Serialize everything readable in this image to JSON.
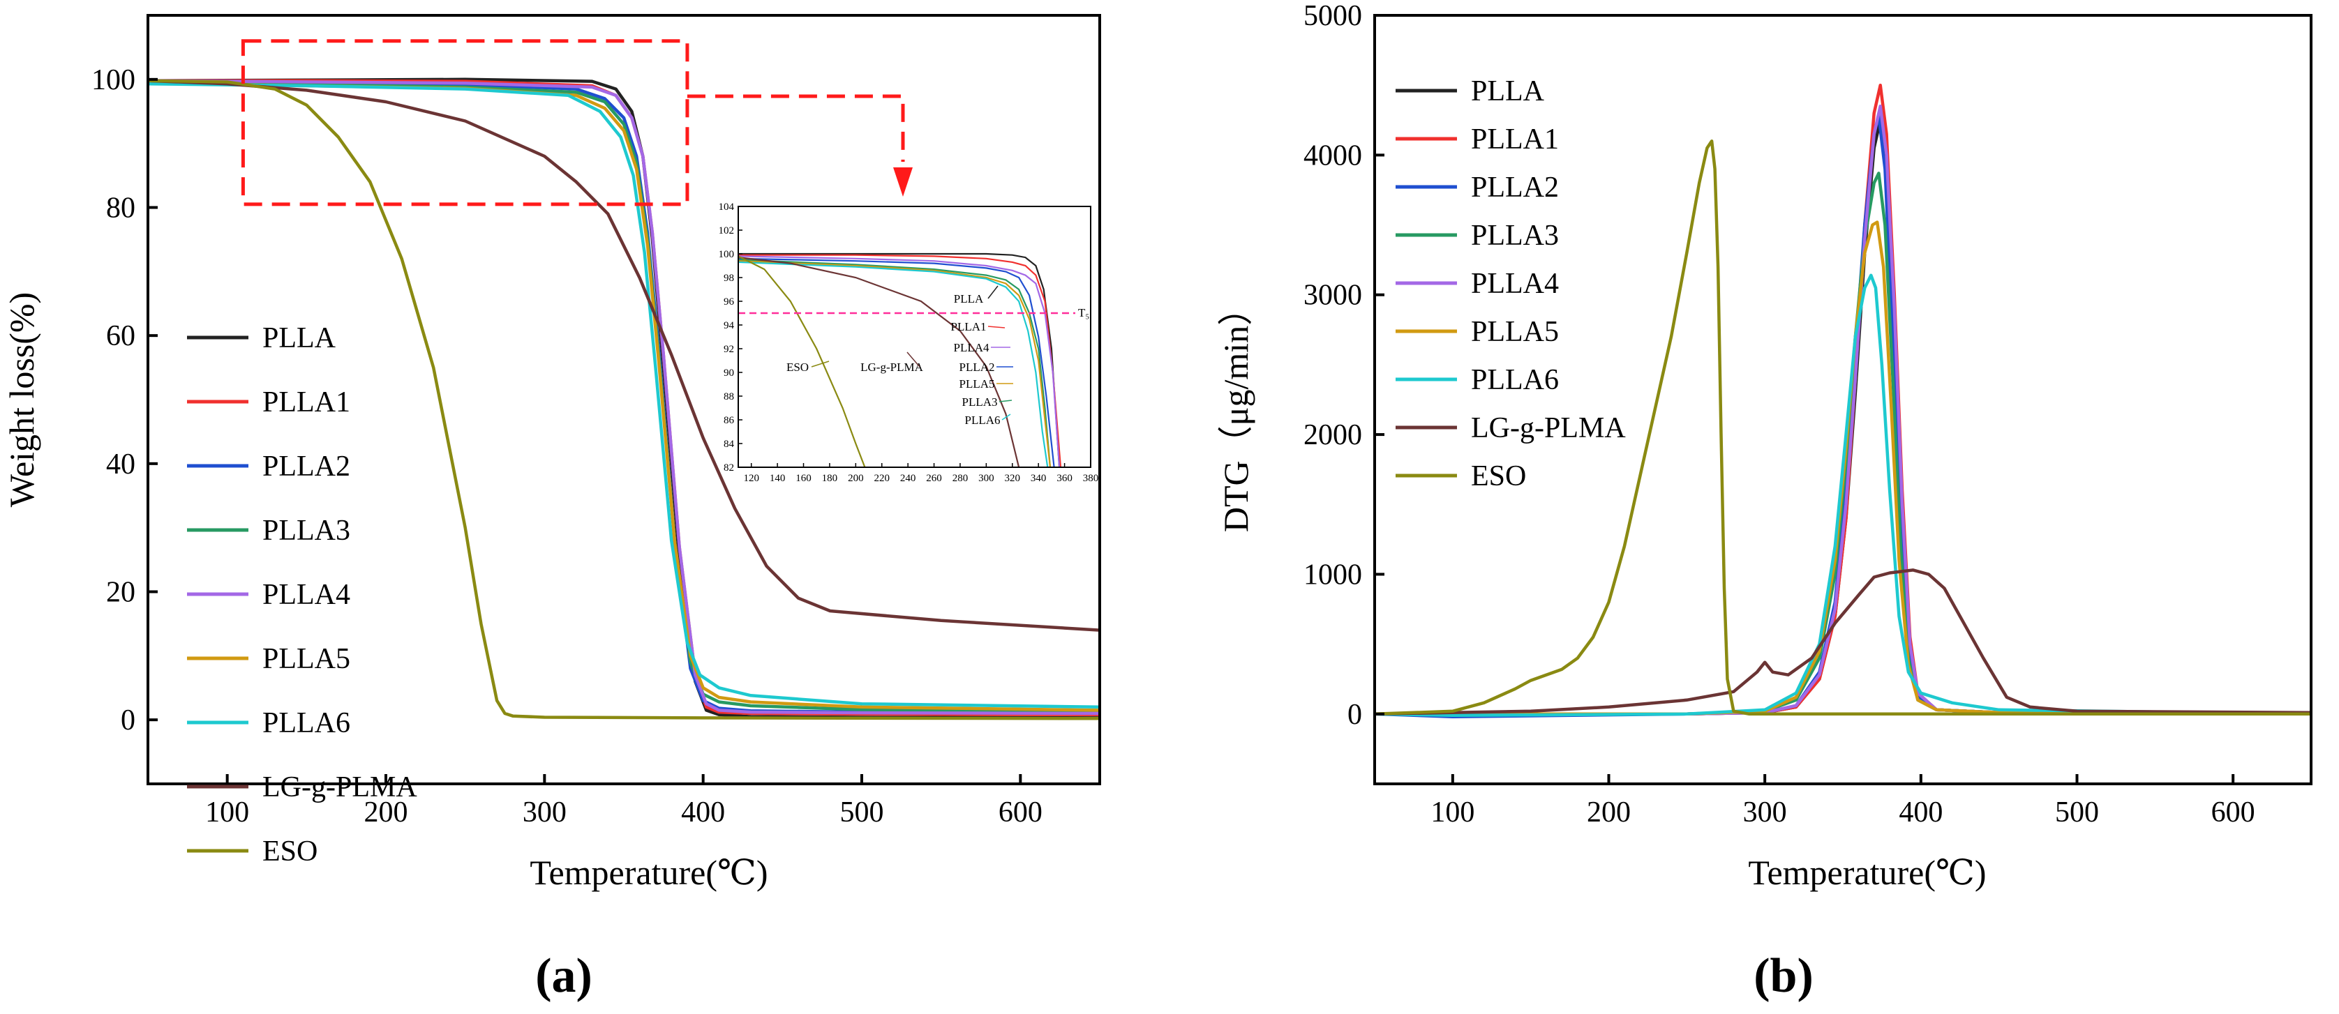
{
  "figure": {
    "panel_a_label": "(a)",
    "panel_b_label": "(b)"
  },
  "colors": {
    "PLLA": "#222222",
    "PLLA1": "#f0302e",
    "PLLA2": "#1f4fd0",
    "PLLA3": "#279a62",
    "PLLA4": "#a368e6",
    "PLLA5": "#d19a12",
    "PLLA6": "#1ec9cf",
    "LG-g-PLMA": "#6b3434",
    "ESO": "#8a8a12",
    "highlight": "#ff1a1a",
    "ts_line": "#ff2e9a"
  },
  "chart_data": [
    {
      "type": "line",
      "panel": "a",
      "title": "",
      "xlabel": "Temperature(℃)",
      "ylabel": "Weight loss(%)",
      "xlim": [
        50,
        650
      ],
      "ylim": [
        -10,
        110
      ],
      "xticks": [
        100,
        200,
        300,
        400,
        500,
        600
      ],
      "yticks": [
        0,
        20,
        40,
        60,
        80,
        100
      ],
      "legend_position": "left",
      "series": [
        {
          "name": "PLLA",
          "x": [
            50,
            150,
            250,
            330,
            345,
            355,
            362,
            368,
            375,
            385,
            395,
            402,
            410,
            430,
            500,
            650
          ],
          "y": [
            99.8,
            99.9,
            100,
            99.7,
            98.5,
            95,
            88,
            75,
            55,
            25,
            6,
            1.5,
            0.8,
            0.5,
            0.4,
            0.3
          ]
        },
        {
          "name": "PLLA1",
          "x": [
            50,
            150,
            250,
            330,
            345,
            355,
            362,
            368,
            375,
            385,
            395,
            402,
            410,
            430,
            500,
            650
          ],
          "y": [
            99.8,
            99.8,
            99.7,
            99,
            97.5,
            94,
            88,
            76,
            57,
            27,
            7,
            2,
            1.2,
            1,
            0.9,
            0.8
          ]
        },
        {
          "name": "PLLA2",
          "x": [
            50,
            150,
            250,
            320,
            338,
            350,
            358,
            365,
            372,
            382,
            392,
            400,
            410,
            430,
            500,
            650
          ],
          "y": [
            99.6,
            99.4,
            99.2,
            98.5,
            97,
            94,
            88,
            76,
            58,
            28,
            8,
            3,
            1.8,
            1.4,
            1.2,
            1.1
          ]
        },
        {
          "name": "PLLA3",
          "x": [
            50,
            150,
            250,
            320,
            338,
            350,
            358,
            365,
            372,
            382,
            392,
            400,
            410,
            430,
            500,
            650
          ],
          "y": [
            99.5,
            99.2,
            98.8,
            98,
            96.5,
            93,
            87,
            75,
            57,
            28,
            9,
            4,
            2.8,
            2.2,
            1.6,
            1.3
          ]
        },
        {
          "name": "PLLA4",
          "x": [
            50,
            150,
            250,
            330,
            345,
            355,
            362,
            368,
            375,
            385,
            395,
            402,
            410,
            430,
            500,
            650
          ],
          "y": [
            99.8,
            99.6,
            99.4,
            98.8,
            97.5,
            94,
            88,
            76,
            57,
            27,
            7,
            2.5,
            1.5,
            1.2,
            1.1,
            1
          ]
        },
        {
          "name": "PLLA5",
          "x": [
            50,
            150,
            250,
            320,
            338,
            350,
            358,
            365,
            372,
            382,
            392,
            400,
            410,
            430,
            500,
            650
          ],
          "y": [
            99.4,
            99,
            98.6,
            97.5,
            95.5,
            92,
            86,
            74,
            56,
            28,
            10,
            5,
            3.5,
            2.8,
            2,
            1.5
          ]
        },
        {
          "name": "PLLA6",
          "x": [
            50,
            150,
            250,
            315,
            335,
            348,
            356,
            363,
            370,
            380,
            390,
            398,
            410,
            430,
            500,
            650
          ],
          "y": [
            99.3,
            99,
            98.5,
            97.5,
            95,
            91,
            85,
            73,
            55,
            28,
            12,
            7,
            5,
            3.8,
            2.5,
            2
          ]
        },
        {
          "name": "LG-g-PLMA",
          "x": [
            50,
            100,
            150,
            200,
            250,
            300,
            320,
            340,
            360,
            380,
            400,
            420,
            440,
            460,
            480,
            550,
            650
          ],
          "y": [
            99.8,
            99.3,
            98.3,
            96.5,
            93.5,
            88,
            84,
            79,
            69,
            57,
            44,
            33,
            24,
            19,
            17,
            15.5,
            14
          ]
        },
        {
          "name": "ESO",
          "x": [
            50,
            100,
            130,
            150,
            170,
            190,
            210,
            230,
            250,
            260,
            270,
            275,
            280,
            300,
            400,
            650
          ],
          "y": [
            99.8,
            99.6,
            98.5,
            96,
            91,
            84,
            72,
            55,
            30,
            15,
            3,
            1,
            0.6,
            0.4,
            0.3,
            0.2
          ]
        }
      ],
      "annotations": {
        "zoom_box": {
          "x_range": [
            110,
            390
          ],
          "y_range": [
            80.5,
            106
          ]
        }
      },
      "inset": {
        "xlim": [
          110,
          380
        ],
        "ylim": [
          82,
          104
        ],
        "xticks": [
          120,
          140,
          160,
          180,
          200,
          220,
          240,
          260,
          280,
          300,
          320,
          340,
          360,
          380
        ],
        "yticks": [
          82,
          84,
          86,
          88,
          90,
          92,
          94,
          96,
          98,
          100,
          102,
          104
        ],
        "ts_level": 95,
        "ts_label": "T₅",
        "labels": [
          "PLLA",
          "PLLA1",
          "PLLA4",
          "PLLA2",
          "PLLA5",
          "PLLA3",
          "PLLA6",
          "ESO",
          "LG-g-PLMA"
        ],
        "series": [
          {
            "name": "PLLA",
            "x": [
              110,
              200,
              260,
              300,
              320,
              330,
              338,
              344,
              350,
              356
            ],
            "y": [
              100,
              100,
              100,
              100,
              99.9,
              99.7,
              99,
              97,
              92,
              82
            ]
          },
          {
            "name": "PLLA1",
            "x": [
              110,
              200,
              260,
              300,
              320,
              330,
              338,
              345,
              351,
              357
            ],
            "y": [
              99.9,
              99.9,
              99.8,
              99.6,
              99.3,
              99,
              98.2,
              96,
              90,
              82
            ]
          },
          {
            "name": "PLLA2",
            "x": [
              110,
              200,
              260,
              300,
              315,
              325,
              333,
              340,
              346,
              352
            ],
            "y": [
              99.6,
              99.4,
              99.2,
              98.8,
              98.5,
              98,
              96.5,
              93,
              88,
              82
            ]
          },
          {
            "name": "PLLA3",
            "x": [
              110,
              200,
              260,
              300,
              315,
              325,
              333,
              340,
              345,
              349
            ],
            "y": [
              99.5,
              99.1,
              98.7,
              98.2,
              97.8,
              97,
              95,
              92,
              87,
              82
            ]
          },
          {
            "name": "PLLA4",
            "x": [
              110,
              200,
              260,
              300,
              320,
              330,
              338,
              345,
              351,
              356
            ],
            "y": [
              99.8,
              99.6,
              99.4,
              99,
              98.6,
              98.2,
              97.5,
              95,
              90,
              82
            ]
          },
          {
            "name": "PLLA5",
            "x": [
              110,
              200,
              260,
              300,
              315,
              325,
              333,
              340,
              345,
              349
            ],
            "y": [
              99.4,
              99,
              98.6,
              98,
              97.5,
              96.5,
              94.5,
              91,
              86,
              82
            ]
          },
          {
            "name": "PLLA6",
            "x": [
              110,
              200,
              260,
              300,
              315,
              325,
              332,
              338,
              343,
              347
            ],
            "y": [
              99.3,
              98.9,
              98.5,
              97.9,
              97.2,
              96,
              93.5,
              90,
              85,
              82
            ]
          },
          {
            "name": "LG-g-PLMA",
            "x": [
              110,
              150,
              200,
              250,
              280,
              300,
              315,
              325
            ],
            "y": [
              99.7,
              99.2,
              98,
              96,
              93.5,
              90.5,
              86.5,
              82
            ]
          },
          {
            "name": "ESO",
            "x": [
              110,
              130,
              150,
              170,
              190,
              200,
              207
            ],
            "y": [
              99.8,
              98.7,
              96,
              92,
              87,
              84,
              82
            ]
          }
        ]
      }
    },
    {
      "type": "line",
      "panel": "b",
      "title": "",
      "xlabel": "Temperature(℃)",
      "ylabel": "DTG（μg/min）",
      "xlim": [
        50,
        650
      ],
      "ylim": [
        -500,
        5000
      ],
      "xticks": [
        100,
        200,
        300,
        400,
        500,
        600
      ],
      "yticks": [
        0,
        1000,
        2000,
        3000,
        4000,
        5000
      ],
      "legend_position": "top-left",
      "series": [
        {
          "name": "PLLA",
          "x": [
            50,
            250,
            300,
            320,
            335,
            345,
            352,
            358,
            364,
            370,
            374,
            378,
            383,
            388,
            393,
            398,
            410,
            450,
            650
          ],
          "y": [
            0,
            0,
            10,
            50,
            250,
            700,
            1400,
            2300,
            3300,
            4050,
            4250,
            3900,
            2800,
            1500,
            500,
            150,
            30,
            10,
            0
          ]
        },
        {
          "name": "PLLA1",
          "x": [
            50,
            250,
            300,
            320,
            335,
            345,
            352,
            358,
            364,
            370,
            374,
            378,
            383,
            388,
            393,
            398,
            410,
            450,
            650
          ],
          "y": [
            0,
            0,
            10,
            50,
            250,
            700,
            1400,
            2400,
            3500,
            4300,
            4500,
            4150,
            3000,
            1600,
            550,
            150,
            30,
            10,
            0
          ]
        },
        {
          "name": "PLLA2",
          "x": [
            50,
            100,
            250,
            300,
            320,
            335,
            345,
            352,
            358,
            364,
            370,
            373,
            377,
            382,
            387,
            392,
            398,
            410,
            450,
            650
          ],
          "y": [
            0,
            -20,
            0,
            10,
            60,
            300,
            800,
            1600,
            2600,
            3500,
            4150,
            4280,
            3900,
            2700,
            1400,
            450,
            120,
            30,
            10,
            0
          ]
        },
        {
          "name": "PLLA3",
          "x": [
            50,
            250,
            300,
            320,
            335,
            345,
            352,
            358,
            364,
            370,
            373,
            377,
            382,
            387,
            392,
            398,
            410,
            450,
            650
          ],
          "y": [
            0,
            0,
            20,
            100,
            400,
            1000,
            1800,
            2700,
            3400,
            3800,
            3870,
            3500,
            2400,
            1200,
            400,
            100,
            30,
            10,
            0
          ]
        },
        {
          "name": "PLLA4",
          "x": [
            50,
            250,
            300,
            320,
            335,
            345,
            352,
            358,
            364,
            370,
            374,
            378,
            383,
            388,
            393,
            398,
            410,
            450,
            650
          ],
          "y": [
            0,
            0,
            10,
            60,
            280,
            750,
            1500,
            2400,
            3400,
            4150,
            4350,
            4000,
            2900,
            1500,
            500,
            150,
            30,
            10,
            0
          ]
        },
        {
          "name": "PLLA5",
          "x": [
            50,
            250,
            300,
            320,
            335,
            345,
            352,
            358,
            364,
            369,
            372,
            376,
            381,
            386,
            392,
            398,
            410,
            450,
            650
          ],
          "y": [
            0,
            0,
            20,
            120,
            450,
            1100,
            1900,
            2700,
            3300,
            3500,
            3520,
            3200,
            2200,
            1100,
            350,
            100,
            30,
            10,
            0
          ]
        },
        {
          "name": "PLLA6",
          "x": [
            50,
            100,
            250,
            300,
            320,
            335,
            345,
            352,
            358,
            364,
            368,
            371,
            375,
            380,
            386,
            392,
            400,
            420,
            450,
            650
          ],
          "y": [
            0,
            -10,
            0,
            30,
            150,
            500,
            1200,
            2000,
            2700,
            3050,
            3140,
            3050,
            2500,
            1600,
            700,
            300,
            150,
            80,
            30,
            0
          ]
        },
        {
          "name": "LG-g-PLMA",
          "x": [
            50,
            100,
            150,
            200,
            250,
            280,
            295,
            300,
            305,
            315,
            330,
            345,
            360,
            370,
            380,
            395,
            405,
            415,
            425,
            440,
            455,
            470,
            500,
            650
          ],
          "y": [
            0,
            10,
            20,
            50,
            100,
            160,
            300,
            370,
            300,
            280,
            400,
            650,
            850,
            980,
            1010,
            1030,
            1000,
            900,
            700,
            400,
            120,
            50,
            20,
            10
          ]
        },
        {
          "name": "ESO",
          "x": [
            50,
            100,
            120,
            140,
            150,
            170,
            180,
            190,
            200,
            210,
            220,
            230,
            240,
            250,
            258,
            263,
            266,
            268,
            270,
            272,
            274,
            276,
            280,
            290,
            650
          ],
          "y": [
            0,
            20,
            80,
            180,
            240,
            320,
            400,
            550,
            800,
            1200,
            1700,
            2200,
            2700,
            3300,
            3800,
            4050,
            4100,
            3900,
            3200,
            2000,
            900,
            250,
            20,
            0,
            0
          ]
        }
      ]
    }
  ]
}
